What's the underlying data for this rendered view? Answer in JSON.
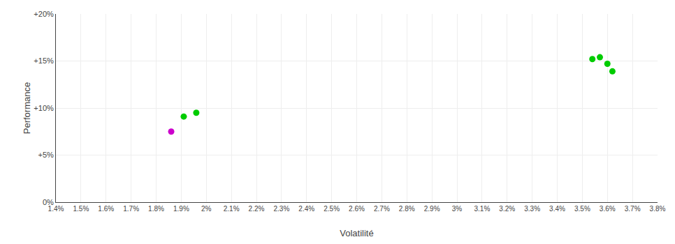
{
  "chart_data": {
    "type": "scatter",
    "xlabel": "Volatilité",
    "ylabel": "Performance",
    "xlim": [
      0.014,
      0.038
    ],
    "ylim": [
      0.0,
      0.2
    ],
    "xticks": [
      {
        "value": 0.014,
        "label": "1.4%"
      },
      {
        "value": 0.015,
        "label": "1.5%"
      },
      {
        "value": 0.016,
        "label": "1.6%"
      },
      {
        "value": 0.017,
        "label": "1.7%"
      },
      {
        "value": 0.018,
        "label": "1.8%"
      },
      {
        "value": 0.019,
        "label": "1.9%"
      },
      {
        "value": 0.02,
        "label": "2%"
      },
      {
        "value": 0.021,
        "label": "2.1%"
      },
      {
        "value": 0.022,
        "label": "2.2%"
      },
      {
        "value": 0.023,
        "label": "2.3%"
      },
      {
        "value": 0.024,
        "label": "2.4%"
      },
      {
        "value": 0.025,
        "label": "2.5%"
      },
      {
        "value": 0.026,
        "label": "2.6%"
      },
      {
        "value": 0.027,
        "label": "2.7%"
      },
      {
        "value": 0.028,
        "label": "2.8%"
      },
      {
        "value": 0.029,
        "label": "2.9%"
      },
      {
        "value": 0.03,
        "label": "3%"
      },
      {
        "value": 0.031,
        "label": "3.1%"
      },
      {
        "value": 0.032,
        "label": "3.2%"
      },
      {
        "value": 0.033,
        "label": "3.3%"
      },
      {
        "value": 0.034,
        "label": "3.4%"
      },
      {
        "value": 0.035,
        "label": "3.5%"
      },
      {
        "value": 0.036,
        "label": "3.6%"
      },
      {
        "value": 0.037,
        "label": "3.7%"
      },
      {
        "value": 0.038,
        "label": "3.8%"
      }
    ],
    "yticks": [
      {
        "value": 0.0,
        "label": "0%"
      },
      {
        "value": 0.05,
        "label": "+5%"
      },
      {
        "value": 0.1,
        "label": "+10%"
      },
      {
        "value": 0.15,
        "label": "+15%"
      },
      {
        "value": 0.2,
        "label": "+20%"
      }
    ],
    "grid": true,
    "series": [
      {
        "color": "#00cc00",
        "x": [
          0.0191,
          0.0196,
          0.0354,
          0.0357,
          0.036,
          0.0362
        ],
        "values": [
          0.091,
          0.095,
          0.152,
          0.154,
          0.147,
          0.139
        ]
      },
      {
        "color": "#cc00cc",
        "x": [
          0.0186
        ],
        "values": [
          0.075
        ]
      }
    ]
  }
}
